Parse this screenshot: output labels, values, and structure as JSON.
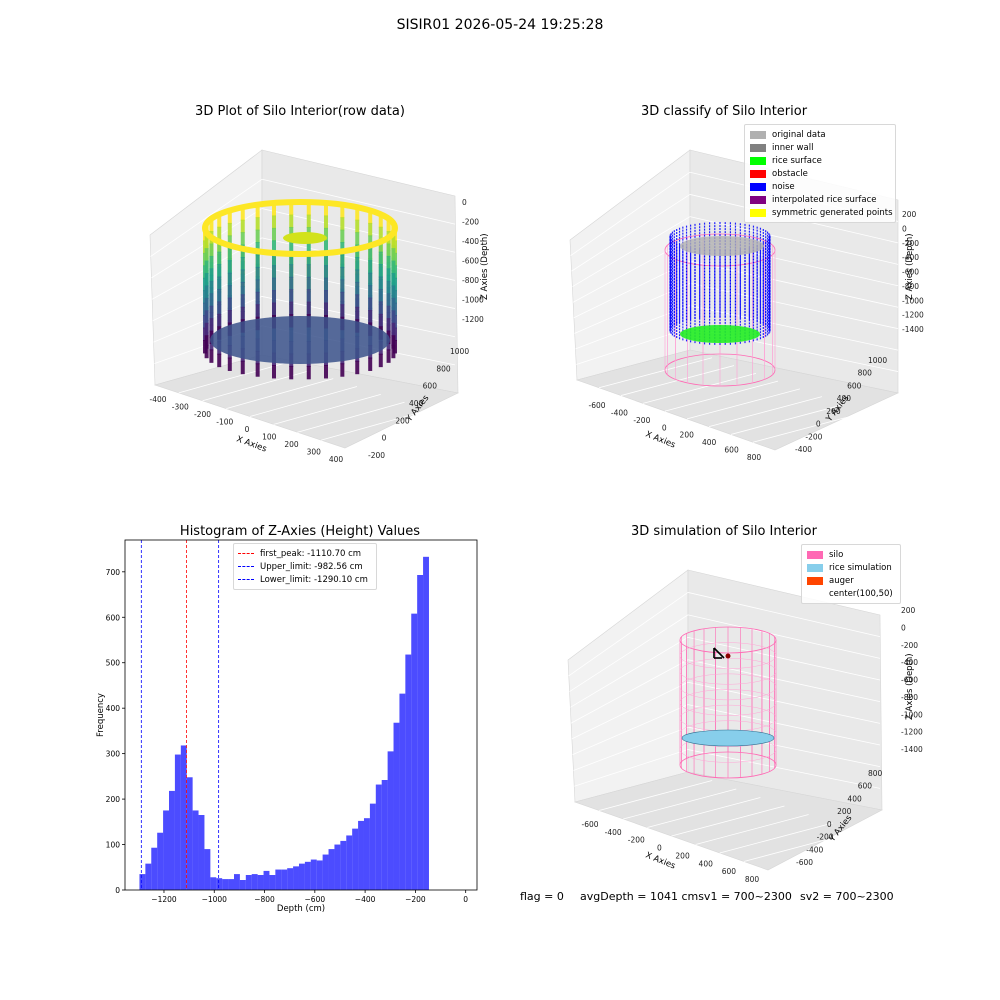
{
  "suptitle": "SISIR01 2026-05-24 19:25:28",
  "panel1": {
    "title": "3D Plot of Silo Interior(row data)",
    "xlabel": "X Axies",
    "ylabel": "Y Axies",
    "zlabel": "Z Axies (Depth)",
    "xticks": [
      "-400",
      "-300",
      "-200",
      "-100",
      "0",
      "100",
      "200",
      "300",
      "400"
    ],
    "yticks": [
      "-200",
      "0",
      "200",
      "400",
      "600",
      "800",
      "1000"
    ],
    "zticks": [
      "0",
      "-200",
      "-400",
      "-600",
      "-800",
      "-1000",
      "-1200"
    ]
  },
  "panel2": {
    "title": "3D classify of Silo Interior",
    "xlabel": "X Axies",
    "ylabel": "Y Axies",
    "zlabel": "Z Axies (Depth)",
    "xticks": [
      "-600",
      "-400",
      "-200",
      "0",
      "200",
      "400",
      "600",
      "800"
    ],
    "yticks": [
      "-400",
      "-200",
      "0",
      "200",
      "400",
      "600",
      "800",
      "1000"
    ],
    "zticks": [
      "200",
      "0",
      "-200",
      "-400",
      "-600",
      "-800",
      "-1000",
      "-1200",
      "-1400"
    ],
    "legend": [
      {
        "label": "original data",
        "color": "#b0b0b0"
      },
      {
        "label": "inner wall",
        "color": "#808080"
      },
      {
        "label": "rice surface",
        "color": "#00ff00"
      },
      {
        "label": "obstacle",
        "color": "#ff0000"
      },
      {
        "label": "noise",
        "color": "#0000ff"
      },
      {
        "label": "interpolated rice surface",
        "color": "#800080"
      },
      {
        "label": "symmetric generated points",
        "color": "#ffff00"
      }
    ]
  },
  "panel3": {
    "title": "Histogram of Z-Axies (Height) Values",
    "legend": [
      {
        "label": "first_peak: -1110.70 cm",
        "color": "#ff0000"
      },
      {
        "label": "Upper_limit: -982.56 cm",
        "color": "#0000ff"
      },
      {
        "label": "Lower_limit: -1290.10 cm",
        "color": "#0000ff"
      }
    ]
  },
  "panel4": {
    "title": "3D simulation of Silo Interior",
    "xlabel": "X Axies",
    "ylabel": "Y Axies",
    "zlabel": "Z Axies (Depth)",
    "xticks": [
      "-600",
      "-400",
      "-200",
      "0",
      "200",
      "400",
      "600",
      "800"
    ],
    "yticks": [
      "-600",
      "-400",
      "-200",
      "0",
      "200",
      "400",
      "600",
      "800"
    ],
    "zticks": [
      "200",
      "0",
      "-200",
      "-400",
      "-600",
      "-800",
      "-1000",
      "-1200",
      "-1400"
    ],
    "legend": [
      {
        "label": "silo",
        "color": "#ff69b4"
      },
      {
        "label": "rice simulation",
        "color": "#87ceeb"
      },
      {
        "label": "auger",
        "color": "#ff4500"
      },
      {
        "label": "center(100,50)",
        "color": ""
      }
    ]
  },
  "status": {
    "flag": "flag = 0",
    "avg_sv1": "avgDepth = 1041 cmsv1 = 700~2300",
    "sv2": "sv2 = 700~2300"
  },
  "chart_data": [
    {
      "type": "histogram",
      "title": "Histogram of Z-Axies (Height) Values",
      "xlabel": "Depth (cm)",
      "ylabel": "Frequency",
      "xlim": [
        -1355,
        45
      ],
      "ylim": [
        0,
        770
      ],
      "xticks": [
        -1200,
        -1000,
        -800,
        -600,
        -400,
        -200,
        0
      ],
      "yticks": [
        0,
        100,
        200,
        300,
        400,
        500,
        600,
        700
      ],
      "bin_width": 23.5,
      "bin_start": -1297.5,
      "color": "#0000ff",
      "values": [
        35,
        58,
        93,
        126,
        175,
        218,
        298,
        318,
        248,
        175,
        165,
        90,
        28,
        26,
        24,
        24,
        35,
        22,
        33,
        35,
        33,
        42,
        33,
        45,
        45,
        48,
        52,
        58,
        62,
        67,
        65,
        78,
        90,
        100,
        108,
        120,
        135,
        152,
        158,
        190,
        232,
        242,
        305,
        368,
        432,
        518,
        608,
        693,
        733
      ],
      "vlines": [
        {
          "x": -1110.7,
          "color": "#ff0000",
          "label": "first_peak: -1110.70 cm"
        },
        {
          "x": -982.56,
          "color": "#0000ff",
          "label": "Upper_limit: -982.56 cm"
        },
        {
          "x": -1290.1,
          "color": "#0000ff",
          "label": "Lower_limit: -1290.10 cm"
        }
      ],
      "legend_position": "top-center"
    }
  ]
}
